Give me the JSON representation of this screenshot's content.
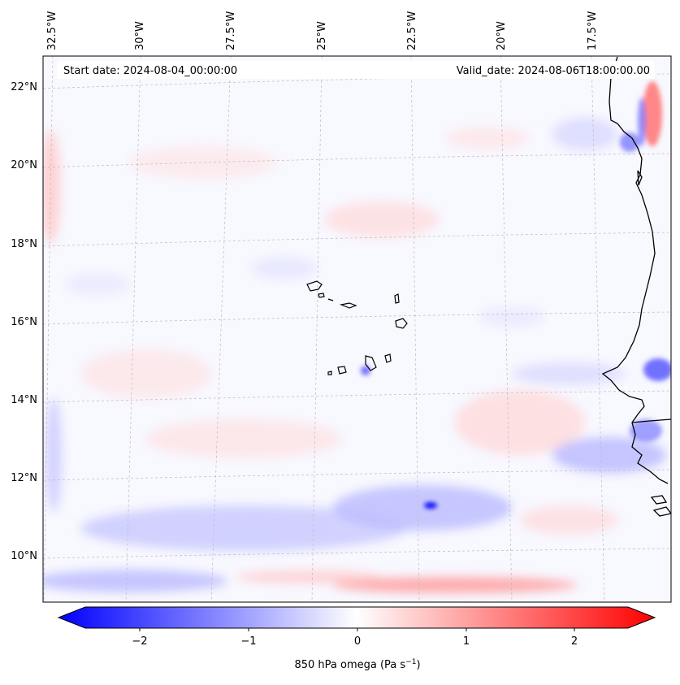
{
  "header": {
    "start_date": "Start date: 2024-08-04_00:00:00",
    "valid_date": "Valid_date: 2024-08-06T18:00:00.00"
  },
  "map": {
    "lon_labels": [
      "32.5°W",
      "30°W",
      "27.5°W",
      "25°W",
      "22.5°W",
      "20°W",
      "17.5°W"
    ],
    "lat_labels": [
      "22°N",
      "20°N",
      "18°N",
      "16°N",
      "14°N",
      "12°N",
      "10°N"
    ]
  },
  "colorbar": {
    "ticks": [
      "−2",
      "−1",
      "0",
      "1",
      "2"
    ],
    "label": "850 hPa omega (Pa s",
    "label_sup": "−1",
    "label_end": ")",
    "cmap": {
      "neg": "#0000ff",
      "zero": "#ffffff",
      "pos": "#ff0000"
    }
  }
}
